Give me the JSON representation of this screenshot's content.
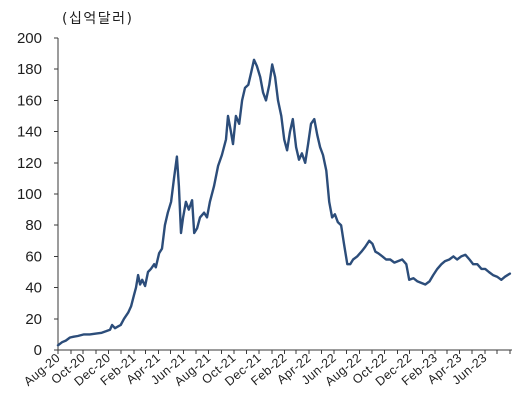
{
  "chart_data": {
    "type": "line",
    "ylabel": "(십억달러)",
    "ylim": [
      0,
      200
    ],
    "xlim": [
      "2020-08-01",
      "2023-08-06"
    ],
    "grid": false,
    "color": "#2c4d7a",
    "y_tick_labels": [
      "0",
      "20",
      "40",
      "60",
      "80",
      "100",
      "120",
      "140",
      "160",
      "180",
      "200"
    ],
    "x_tick_labels": [
      "Aug-20",
      "Oct-20",
      "Dec-20",
      "Feb-21",
      "Apr-21",
      "Jun-21",
      "Aug-21",
      "Oct-21",
      "Dec-21",
      "Feb-22",
      "Apr-22",
      "Jun-22",
      "Aug-22",
      "Oct-22",
      "Dec-22",
      "Feb-23",
      "Apr-23",
      "Jun-23"
    ],
    "x": [
      "2020-08-01",
      "2020-08-11",
      "2020-08-20",
      "2020-08-30",
      "2020-09-08",
      "2020-09-18",
      "2020-10-03",
      "2020-10-17",
      "2020-11-01",
      "2020-11-15",
      "2020-11-25",
      "2020-12-05",
      "2020-12-10",
      "2020-12-17",
      "2020-12-24",
      "2020-12-31",
      "2021-01-08",
      "2021-01-18",
      "2021-01-25",
      "2021-02-01",
      "2021-02-06",
      "2021-02-11",
      "2021-02-16",
      "2021-02-21",
      "2021-02-28",
      "2021-03-07",
      "2021-03-14",
      "2021-03-22",
      "2021-03-26",
      "2021-04-03",
      "2021-04-10",
      "2021-04-17",
      "2021-04-24",
      "2021-05-02",
      "2021-05-09",
      "2021-05-16",
      "2021-05-21",
      "2021-05-26",
      "2021-05-31",
      "2021-06-07",
      "2021-06-14",
      "2021-06-22",
      "2021-06-27",
      "2021-07-04",
      "2021-07-11",
      "2021-07-21",
      "2021-07-28",
      "2021-08-04",
      "2021-08-14",
      "2021-08-24",
      "2021-09-02",
      "2021-09-12",
      "2021-09-17",
      "2021-09-24",
      "2021-09-29",
      "2021-10-06",
      "2021-10-14",
      "2021-10-21",
      "2021-10-28",
      "2021-11-05",
      "2021-11-12",
      "2021-11-19",
      "2021-11-26",
      "2021-12-04",
      "2021-12-11",
      "2021-12-18",
      "2021-12-26",
      "2022-01-02",
      "2022-01-09",
      "2022-01-16",
      "2022-01-24",
      "2022-01-31",
      "2022-02-07",
      "2022-02-14",
      "2022-02-21",
      "2022-03-01",
      "2022-03-08",
      "2022-03-15",
      "2022-03-23",
      "2022-03-30",
      "2022-04-06",
      "2022-04-14",
      "2022-04-21",
      "2022-04-28",
      "2022-05-05",
      "2022-05-13",
      "2022-05-20",
      "2022-05-27",
      "2022-06-03",
      "2022-06-10",
      "2022-06-18",
      "2022-06-25",
      "2022-07-03",
      "2022-07-10",
      "2022-07-17",
      "2022-07-27",
      "2022-08-06",
      "2022-08-15",
      "2022-08-25",
      "2022-09-02",
      "2022-09-09",
      "2022-09-16",
      "2022-09-26",
      "2022-10-05",
      "2022-10-15",
      "2022-10-25",
      "2022-11-03",
      "2022-11-13",
      "2022-11-23",
      "2022-11-30",
      "2022-12-10",
      "2022-12-20",
      "2022-12-29",
      "2023-01-08",
      "2023-01-18",
      "2023-01-27",
      "2023-02-06",
      "2023-02-16",
      "2023-02-25",
      "2023-03-07",
      "2023-03-17",
      "2023-03-26",
      "2023-04-05",
      "2023-04-15",
      "2023-04-25",
      "2023-05-04",
      "2023-05-14",
      "2023-05-24",
      "2023-06-02",
      "2023-06-11",
      "2023-06-21",
      "2023-07-01",
      "2023-07-11",
      "2023-07-20",
      "2023-08-01"
    ],
    "y": [
      3,
      5,
      6,
      8,
      8.5,
      9,
      10,
      10,
      10.5,
      11,
      12,
      13,
      16,
      14,
      15,
      16,
      20,
      24,
      28,
      35,
      40,
      48,
      42,
      45,
      41,
      50,
      52,
      55,
      53,
      62,
      65,
      80,
      88,
      95,
      110,
      124,
      105,
      75,
      85,
      95,
      90,
      96,
      75,
      78,
      85,
      88,
      85,
      95,
      105,
      118,
      125,
      135,
      150,
      140,
      132,
      150,
      145,
      160,
      168,
      170,
      178,
      186,
      182,
      175,
      165,
      160,
      170,
      183,
      175,
      160,
      150,
      135,
      128,
      140,
      148,
      130,
      122,
      126,
      120,
      132,
      145,
      148,
      138,
      130,
      125,
      115,
      95,
      85,
      87,
      82,
      80,
      68,
      55,
      55,
      58,
      60,
      63,
      66,
      70,
      68,
      63,
      62,
      60,
      58,
      58,
      56,
      57,
      58,
      55,
      45,
      46,
      44,
      43,
      42,
      44,
      48,
      52,
      55,
      57,
      58,
      60,
      58,
      60,
      61,
      58,
      55,
      55,
      52,
      52,
      50,
      48,
      47,
      45,
      47,
      49
    ]
  }
}
